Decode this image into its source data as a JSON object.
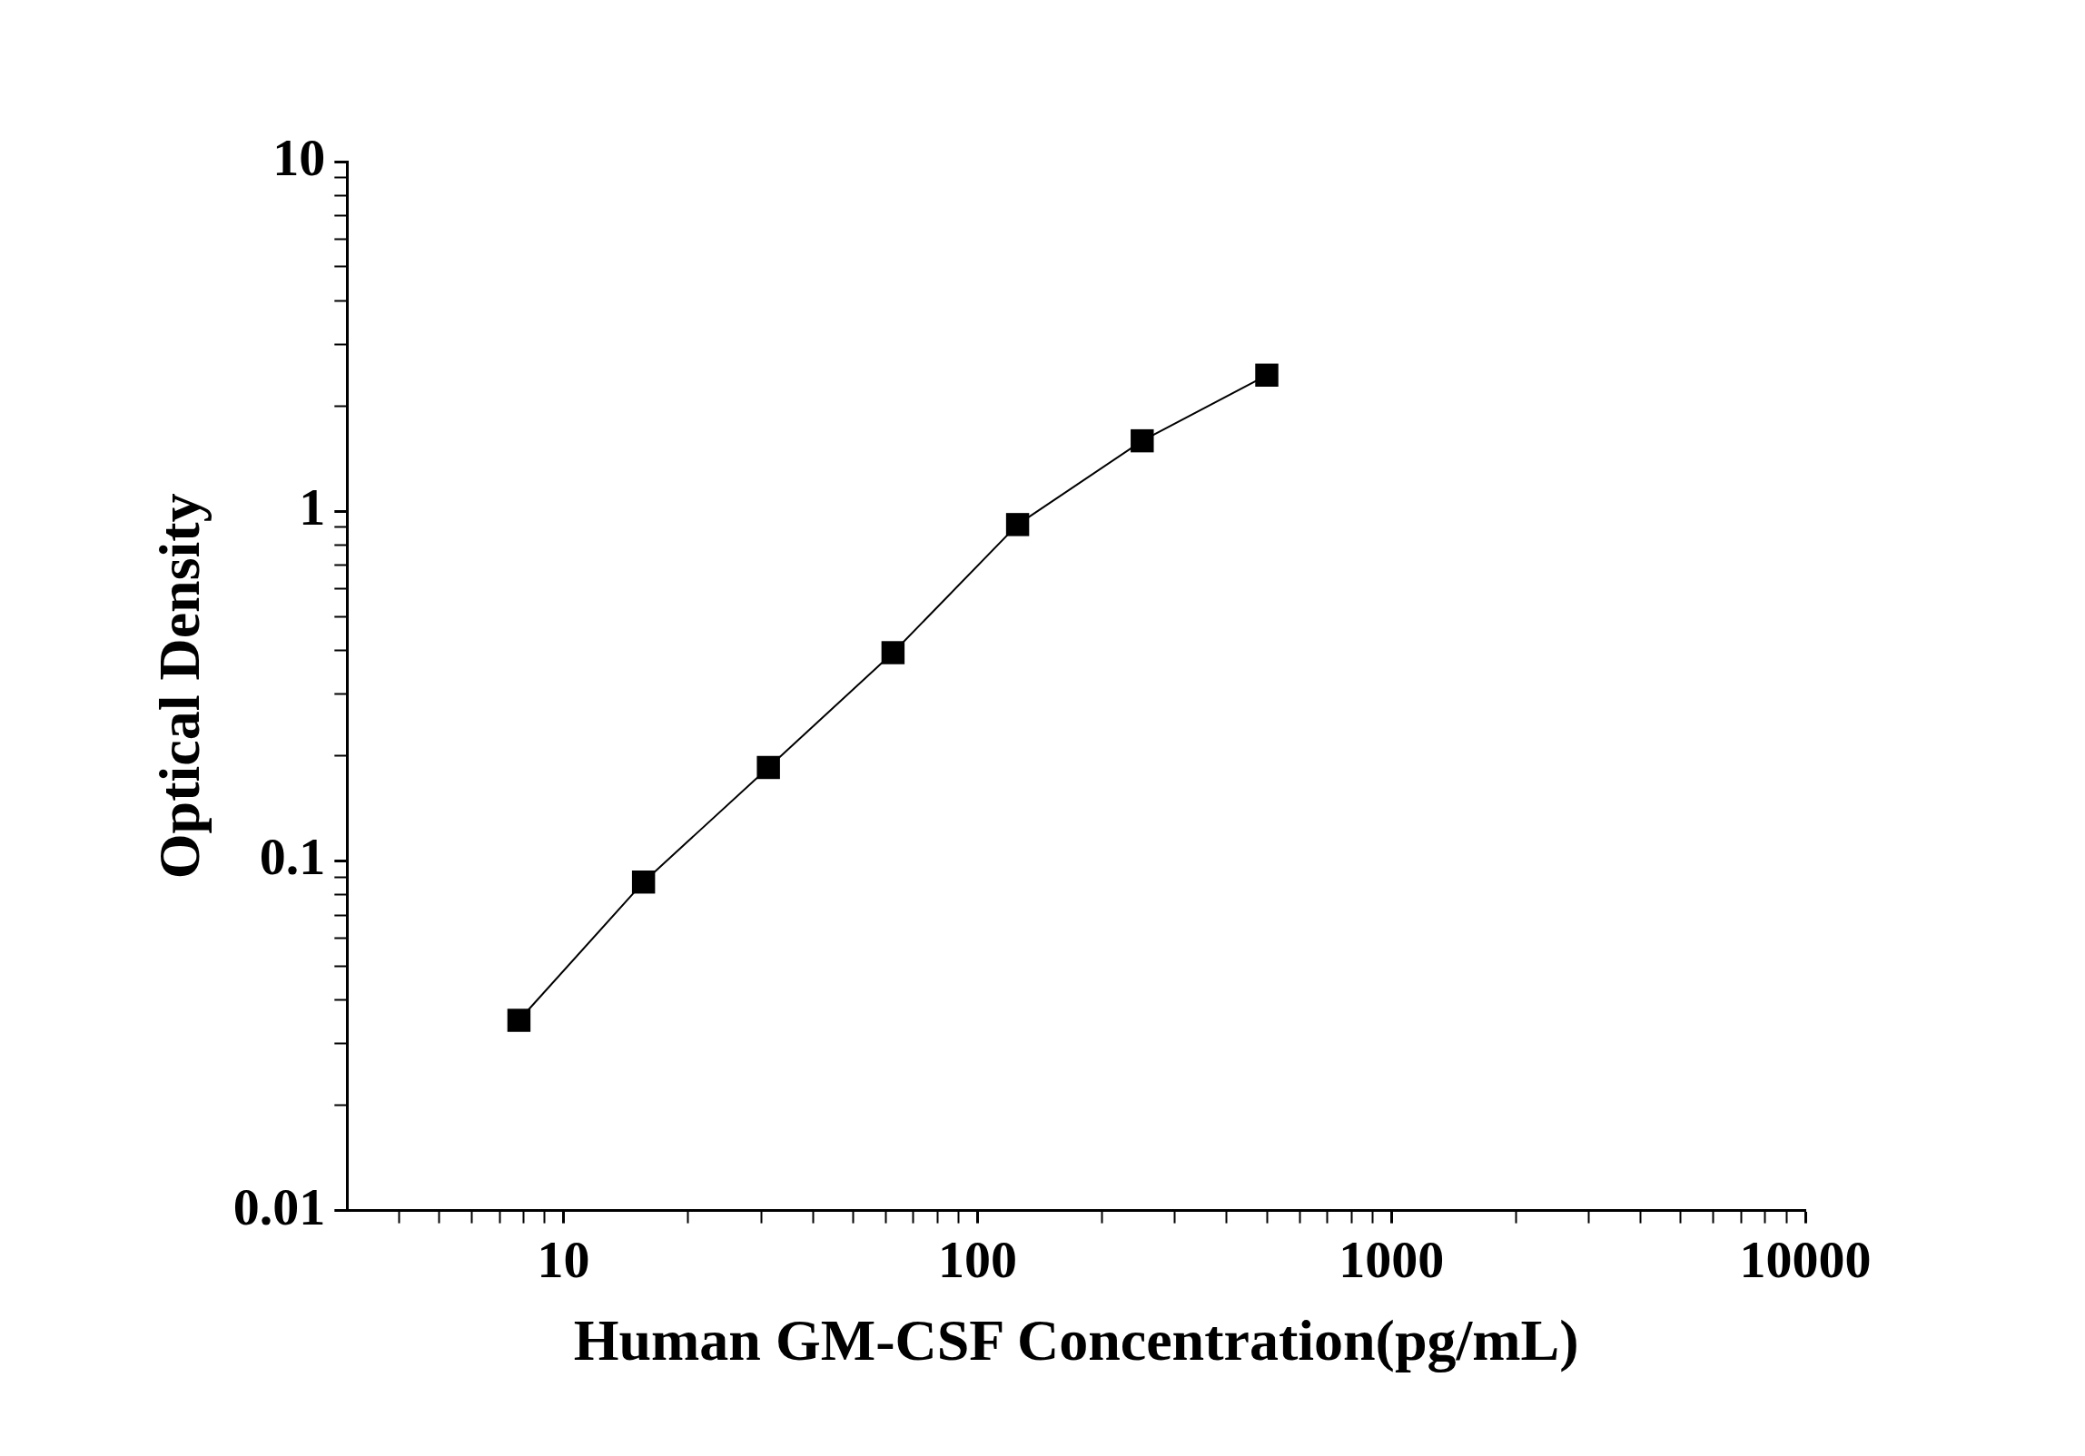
{
  "chart_data": {
    "type": "line",
    "xlabel": "Human GM-CSF Concentration(pg/mL)",
    "ylabel": "Optical Density",
    "log": "xy",
    "marker": "square",
    "line_style": "solid",
    "grid": false,
    "legend": false,
    "x": [
      7.8,
      15.6,
      31.25,
      62.5,
      125,
      250,
      500
    ],
    "series": [
      {
        "color": "#000000",
        "values": [
          0.035,
          0.087,
          0.185,
          0.394,
          0.916,
          1.59,
          2.45
        ]
      }
    ],
    "xlim": [
      3,
      10000
    ],
    "xticks": [
      {
        "value": 4,
        "label": null
      },
      {
        "value": 5,
        "label": null
      },
      {
        "value": 6,
        "label": null
      },
      {
        "value": 7,
        "label": null
      },
      {
        "value": 8,
        "label": null
      },
      {
        "value": 9,
        "label": null
      },
      10,
      {
        "value": 20,
        "label": null
      },
      {
        "value": 30,
        "label": null
      },
      {
        "value": 40,
        "label": null
      },
      {
        "value": 50,
        "label": null
      },
      {
        "value": 60,
        "label": null
      },
      {
        "value": 70,
        "label": null
      },
      {
        "value": 80,
        "label": null
      },
      {
        "value": 90,
        "label": null
      },
      100,
      {
        "value": 200,
        "label": null
      },
      {
        "value": 300,
        "label": null
      },
      {
        "value": 400,
        "label": null
      },
      {
        "value": 500,
        "label": null
      },
      {
        "value": 600,
        "label": null
      },
      {
        "value": 700,
        "label": null
      },
      {
        "value": 800,
        "label": null
      },
      {
        "value": 900,
        "label": null
      },
      1000,
      {
        "value": 2000,
        "label": null
      },
      {
        "value": 3000,
        "label": null
      },
      {
        "value": 4000,
        "label": null
      },
      {
        "value": 5000,
        "label": null
      },
      {
        "value": 6000,
        "label": null
      },
      {
        "value": 7000,
        "label": null
      },
      {
        "value": 8000,
        "label": null
      },
      {
        "value": 9000,
        "label": null
      },
      10000
    ],
    "ylim": [
      0.01,
      10
    ],
    "yticks": [
      0.01,
      {
        "value": 0.02,
        "label": null
      },
      {
        "value": 0.03,
        "label": null
      },
      {
        "value": 0.04,
        "label": null
      },
      {
        "value": 0.05,
        "label": null
      },
      {
        "value": 0.06,
        "label": null
      },
      {
        "value": 0.07,
        "label": null
      },
      {
        "value": 0.08,
        "label": null
      },
      {
        "value": 0.09,
        "label": null
      },
      0.1,
      {
        "value": 0.2,
        "label": null
      },
      {
        "value": 0.3,
        "label": null
      },
      {
        "value": 0.4,
        "label": null
      },
      {
        "value": 0.5,
        "label": null
      },
      {
        "value": 0.6,
        "label": null
      },
      {
        "value": 0.7,
        "label": null
      },
      {
        "value": 0.8,
        "label": null
      },
      {
        "value": 0.9,
        "label": null
      },
      1,
      {
        "value": 2,
        "label": null
      },
      {
        "value": 3,
        "label": null
      },
      {
        "value": 4,
        "label": null
      },
      {
        "value": 5,
        "label": null
      },
      {
        "value": 6,
        "label": null
      },
      {
        "value": 7,
        "label": null
      },
      {
        "value": 8,
        "label": null
      },
      {
        "value": 9,
        "label": null
      },
      10
    ]
  }
}
